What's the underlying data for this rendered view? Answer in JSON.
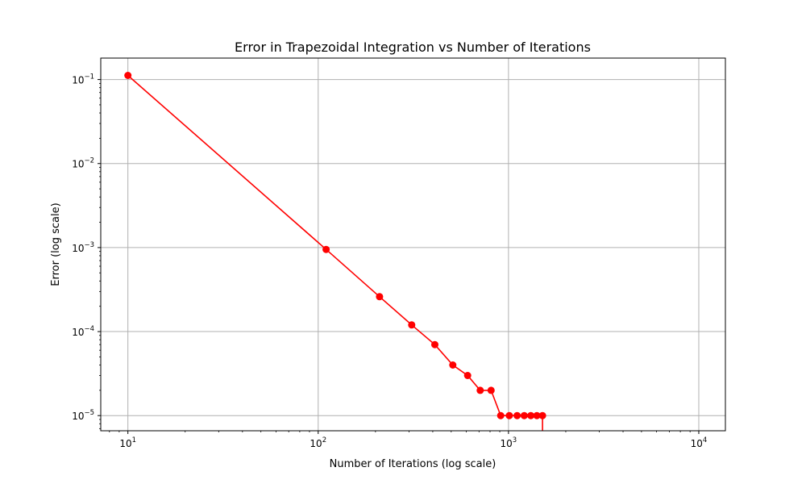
{
  "chart_data": {
    "type": "line",
    "title": "Error in Trapezoidal Integration vs Number of Iterations",
    "xlabel": "Number of Iterations (log scale)",
    "ylabel": "Error (log scale)",
    "xscale": "log",
    "yscale": "log",
    "xlim": [
      7.2,
      13800
    ],
    "ylim": [
      6.6e-06,
      0.18
    ],
    "grid": true,
    "x_ticks": [
      {
        "value": 10,
        "base": "10",
        "exp": "1"
      },
      {
        "value": 100,
        "base": "10",
        "exp": "2"
      },
      {
        "value": 1000,
        "base": "10",
        "exp": "3"
      },
      {
        "value": 10000,
        "base": "10",
        "exp": "4"
      }
    ],
    "y_ticks": [
      {
        "value": 0.1,
        "base": "10",
        "exp": "−1"
      },
      {
        "value": 0.01,
        "base": "10",
        "exp": "−2"
      },
      {
        "value": 0.001,
        "base": "10",
        "exp": "−3"
      },
      {
        "value": 0.0001,
        "base": "10",
        "exp": "−4"
      },
      {
        "value": 1e-05,
        "base": "10",
        "exp": "−5"
      }
    ],
    "series": [
      {
        "color": "#ff0000",
        "marker": "circle",
        "x": [
          10,
          110,
          210,
          310,
          410,
          510,
          610,
          710,
          810,
          910,
          1010,
          1110,
          1210,
          1310,
          1410,
          1510,
          1510
        ],
        "y": [
          0.112,
          0.00095,
          0.00026,
          0.00012,
          7e-05,
          4e-05,
          3e-05,
          2e-05,
          2e-05,
          1e-05,
          1e-05,
          1e-05,
          1e-05,
          1e-05,
          1e-05,
          1e-05,
          5e-06
        ]
      }
    ]
  }
}
